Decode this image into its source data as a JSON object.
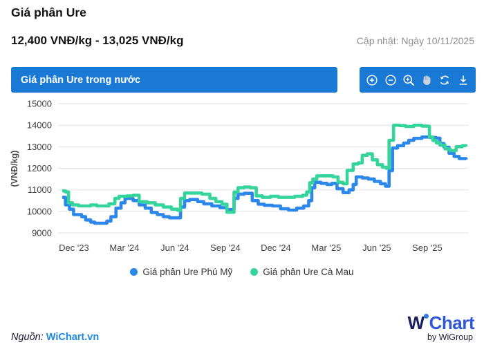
{
  "header": {
    "title": "Giá phân Ure",
    "price_range": "12,400 VNĐ/kg - 13,025 VNĐ/kg",
    "updated": "Cập nhật: Ngày 10/11/2025"
  },
  "chart_header": {
    "title": "Giá phân Ure trong nước",
    "toolbar_icons": [
      "zoom-in",
      "zoom-out",
      "zoom-area",
      "pan",
      "reset",
      "download"
    ]
  },
  "footer": {
    "source_label": "Nguồn:",
    "source_link": "WiChart.vn",
    "logo_w": "W",
    "logo_chart": "Chart",
    "logo_by": "by WiGroup"
  },
  "colors": {
    "header_bar": "#1b79d6",
    "grid": "#e3e3e3",
    "tick_text": "#3f3f3f",
    "series_blue": "#2b87e9",
    "series_green": "#35d49b",
    "link_blue": "#1e88e5",
    "logo_navy": "#1b2060",
    "logo_blue": "#2f57d9"
  },
  "chart_data": {
    "type": "line",
    "step": true,
    "title": "Giá phân Ure trong nước",
    "ylabel": "(VNĐ/kg)",
    "ylim": [
      9000,
      15000
    ],
    "yticks": [
      9000,
      10000,
      11000,
      12000,
      13000,
      14000,
      15000
    ],
    "xlim": [
      2023.859,
      2025.859
    ],
    "grid": "horizontal",
    "legend_position": "bottom",
    "xticks": [
      {
        "t": 2023.917,
        "label": "Dec '23"
      },
      {
        "t": 2024.167,
        "label": "Mar '24"
      },
      {
        "t": 2024.417,
        "label": "Jun '24"
      },
      {
        "t": 2024.667,
        "label": "Sep '24"
      },
      {
        "t": 2024.917,
        "label": "Dec '24"
      },
      {
        "t": 2025.167,
        "label": "Mar '25"
      },
      {
        "t": 2025.417,
        "label": "Jun '25"
      },
      {
        "t": 2025.667,
        "label": "Sep '25"
      }
    ],
    "series": [
      {
        "name": "Giá phân Ure Phú Mỹ",
        "color": "#2b87e9",
        "points": [
          [
            2023.859,
            10650
          ],
          [
            2023.875,
            10300
          ],
          [
            2023.895,
            10100
          ],
          [
            2023.915,
            9850
          ],
          [
            2023.955,
            9750
          ],
          [
            2023.975,
            9600
          ],
          [
            2024.0,
            9500
          ],
          [
            2024.02,
            9450
          ],
          [
            2024.06,
            9450
          ],
          [
            2024.08,
            9550
          ],
          [
            2024.1,
            9750
          ],
          [
            2024.125,
            10150
          ],
          [
            2024.15,
            10400
          ],
          [
            2024.17,
            10600
          ],
          [
            2024.21,
            10500
          ],
          [
            2024.24,
            10300
          ],
          [
            2024.27,
            10150
          ],
          [
            2024.3,
            9950
          ],
          [
            2024.33,
            9850
          ],
          [
            2024.36,
            9750
          ],
          [
            2024.39,
            9700
          ],
          [
            2024.43,
            9700
          ],
          [
            2024.445,
            10200
          ],
          [
            2024.465,
            10500
          ],
          [
            2024.49,
            10550
          ],
          [
            2024.53,
            10450
          ],
          [
            2024.56,
            10350
          ],
          [
            2024.6,
            10250
          ],
          [
            2024.64,
            10170
          ],
          [
            2024.675,
            10080
          ],
          [
            2024.71,
            10600
          ],
          [
            2024.73,
            10800
          ],
          [
            2024.76,
            10840
          ],
          [
            2024.8,
            10500
          ],
          [
            2024.83,
            10330
          ],
          [
            2024.86,
            10280
          ],
          [
            2024.9,
            10250
          ],
          [
            2024.94,
            10120
          ],
          [
            2024.98,
            10060
          ],
          [
            2025.02,
            10150
          ],
          [
            2025.055,
            10250
          ],
          [
            2025.08,
            10500
          ],
          [
            2025.095,
            11100
          ],
          [
            2025.11,
            11350
          ],
          [
            2025.14,
            11300
          ],
          [
            2025.17,
            11250
          ],
          [
            2025.195,
            11300
          ],
          [
            2025.22,
            11050
          ],
          [
            2025.25,
            10870
          ],
          [
            2025.28,
            11000
          ],
          [
            2025.3,
            11250
          ],
          [
            2025.315,
            11600
          ],
          [
            2025.345,
            11550
          ],
          [
            2025.375,
            11500
          ],
          [
            2025.405,
            11390
          ],
          [
            2025.435,
            11280
          ],
          [
            2025.46,
            11170
          ],
          [
            2025.478,
            11890
          ],
          [
            2025.495,
            12940
          ],
          [
            2025.52,
            13050
          ],
          [
            2025.55,
            13170
          ],
          [
            2025.575,
            13300
          ],
          [
            2025.6,
            13390
          ],
          [
            2025.64,
            13450
          ],
          [
            2025.68,
            13430
          ],
          [
            2025.71,
            13400
          ],
          [
            2025.73,
            13150
          ],
          [
            2025.75,
            12980
          ],
          [
            2025.775,
            12700
          ],
          [
            2025.8,
            12550
          ],
          [
            2025.825,
            12450
          ],
          [
            2025.859,
            12400
          ]
        ]
      },
      {
        "name": "Giá phân Ure Cà Mau",
        "color": "#35d49b",
        "points": [
          [
            2023.859,
            10950
          ],
          [
            2023.875,
            10900
          ],
          [
            2023.89,
            10400
          ],
          [
            2023.91,
            10300
          ],
          [
            2023.94,
            10250
          ],
          [
            2023.97,
            10250
          ],
          [
            2024.0,
            10300
          ],
          [
            2024.03,
            10250
          ],
          [
            2024.06,
            10250
          ],
          [
            2024.09,
            10350
          ],
          [
            2024.12,
            10600
          ],
          [
            2024.14,
            10700
          ],
          [
            2024.18,
            10720
          ],
          [
            2024.21,
            10750
          ],
          [
            2024.24,
            10450
          ],
          [
            2024.28,
            10400
          ],
          [
            2024.32,
            10300
          ],
          [
            2024.36,
            10200
          ],
          [
            2024.4,
            10100
          ],
          [
            2024.43,
            10050
          ],
          [
            2024.445,
            10600
          ],
          [
            2024.465,
            10850
          ],
          [
            2024.51,
            10850
          ],
          [
            2024.55,
            10800
          ],
          [
            2024.59,
            10600
          ],
          [
            2024.62,
            10450
          ],
          [
            2024.65,
            10330
          ],
          [
            2024.675,
            9960
          ],
          [
            2024.71,
            10900
          ],
          [
            2024.73,
            11100
          ],
          [
            2024.76,
            11130
          ],
          [
            2024.79,
            11100
          ],
          [
            2024.82,
            10720
          ],
          [
            2024.85,
            10650
          ],
          [
            2024.89,
            10700
          ],
          [
            2024.93,
            10650
          ],
          [
            2024.97,
            10650
          ],
          [
            2025.01,
            10700
          ],
          [
            2025.05,
            10750
          ],
          [
            2025.07,
            10900
          ],
          [
            2025.085,
            11330
          ],
          [
            2025.1,
            11500
          ],
          [
            2025.12,
            11650
          ],
          [
            2025.17,
            11650
          ],
          [
            2025.2,
            11600
          ],
          [
            2025.225,
            11350
          ],
          [
            2025.25,
            11280
          ],
          [
            2025.27,
            11900
          ],
          [
            2025.3,
            12200
          ],
          [
            2025.325,
            12250
          ],
          [
            2025.345,
            12600
          ],
          [
            2025.37,
            12670
          ],
          [
            2025.395,
            12390
          ],
          [
            2025.42,
            12170
          ],
          [
            2025.445,
            12050
          ],
          [
            2025.465,
            12000
          ],
          [
            2025.478,
            13300
          ],
          [
            2025.5,
            14000
          ],
          [
            2025.53,
            13980
          ],
          [
            2025.56,
            13940
          ],
          [
            2025.6,
            14000
          ],
          [
            2025.64,
            13960
          ],
          [
            2025.665,
            13950
          ],
          [
            2025.678,
            13450
          ],
          [
            2025.695,
            13290
          ],
          [
            2025.712,
            13180
          ],
          [
            2025.73,
            13075
          ],
          [
            2025.755,
            12900
          ],
          [
            2025.78,
            12820
          ],
          [
            2025.81,
            13000
          ],
          [
            2025.84,
            13050
          ],
          [
            2025.859,
            13025
          ]
        ]
      }
    ]
  }
}
